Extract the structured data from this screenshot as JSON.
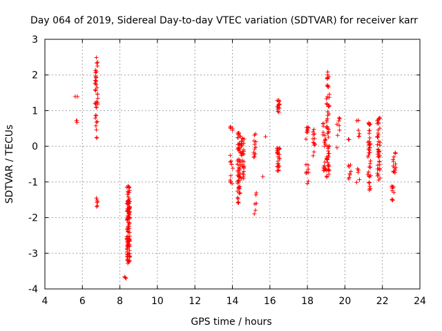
{
  "chart_data": {
    "type": "scatter",
    "title": "Day 064 of 2019, Sidereal Day-to-day VTEC variation (SDTVAR) for receiver karr",
    "xlabel": "GPS time / hours",
    "ylabel": "SDTVAR / TECUs",
    "xlim": [
      4,
      24
    ],
    "ylim": [
      -4,
      3
    ],
    "grid": true,
    "marker": "plus",
    "colors": {
      "marker": "#ff0000",
      "grid": "#a0a0a0",
      "axis": "#000000"
    },
    "xticks": [
      "4",
      "6",
      "8",
      "10",
      "12",
      "14",
      "16",
      "18",
      "20",
      "22",
      "24"
    ],
    "yticks": [
      "-4",
      "-3",
      "-2",
      "-1",
      "0",
      "1",
      "2",
      "3"
    ],
    "clusters": [
      {
        "x": 5.65,
        "y0": 1.35,
        "y1": 1.42,
        "n": 2
      },
      {
        "x": 5.65,
        "y0": 0.65,
        "y1": 0.75,
        "n": 3
      },
      {
        "x": 6.75,
        "y0": 0.2,
        "y1": 2.55,
        "n": 40
      },
      {
        "x": 6.75,
        "y0": -1.75,
        "y1": -1.45,
        "n": 6
      },
      {
        "x": 8.45,
        "y0": -3.3,
        "y1": -1.1,
        "n": 120
      },
      {
        "x": 8.25,
        "y0": -3.8,
        "y1": -3.65,
        "n": 3
      },
      {
        "x": 13.95,
        "y0": 0.45,
        "y1": 0.58,
        "n": 5
      },
      {
        "x": 13.95,
        "y0": -1.1,
        "y1": -0.1,
        "n": 10
      },
      {
        "x": 14.35,
        "y0": -1.6,
        "y1": 0.45,
        "n": 60
      },
      {
        "x": 14.55,
        "y0": -1.0,
        "y1": 0.35,
        "n": 30
      },
      {
        "x": 15.2,
        "y0": -0.45,
        "y1": 0.4,
        "n": 12
      },
      {
        "x": 15.2,
        "y0": -1.9,
        "y1": -1.3,
        "n": 6
      },
      {
        "x": 15.7,
        "y0": 0.27,
        "y1": 0.27,
        "n": 1
      },
      {
        "x": 15.7,
        "y0": -0.85,
        "y1": -0.85,
        "n": 1
      },
      {
        "x": 16.45,
        "y0": 0.9,
        "y1": 1.3,
        "n": 15
      },
      {
        "x": 16.45,
        "y0": -0.75,
        "y1": 0.0,
        "n": 25
      },
      {
        "x": 18.0,
        "y0": 0.1,
        "y1": 0.55,
        "n": 8
      },
      {
        "x": 18.0,
        "y0": -1.05,
        "y1": -0.45,
        "n": 8
      },
      {
        "x": 18.35,
        "y0": -0.3,
        "y1": 1.0,
        "n": 12
      },
      {
        "x": 18.9,
        "y0": -0.7,
        "y1": 0.8,
        "n": 20
      },
      {
        "x": 19.1,
        "y0": -0.9,
        "y1": 2.15,
        "n": 60
      },
      {
        "x": 19.65,
        "y0": -0.05,
        "y1": 0.8,
        "n": 8
      },
      {
        "x": 20.25,
        "y0": 0.15,
        "y1": 0.22,
        "n": 3
      },
      {
        "x": 20.25,
        "y0": -1.2,
        "y1": -0.5,
        "n": 8
      },
      {
        "x": 20.7,
        "y0": 0.25,
        "y1": 0.75,
        "n": 6
      },
      {
        "x": 20.7,
        "y0": -1.1,
        "y1": -0.3,
        "n": 5
      },
      {
        "x": 21.3,
        "y0": -1.25,
        "y1": 0.8,
        "n": 40
      },
      {
        "x": 21.8,
        "y0": -0.95,
        "y1": 0.85,
        "n": 45
      },
      {
        "x": 22.55,
        "y0": -1.55,
        "y1": -1.1,
        "n": 10
      },
      {
        "x": 22.65,
        "y0": -0.75,
        "y1": -0.15,
        "n": 15
      }
    ]
  }
}
